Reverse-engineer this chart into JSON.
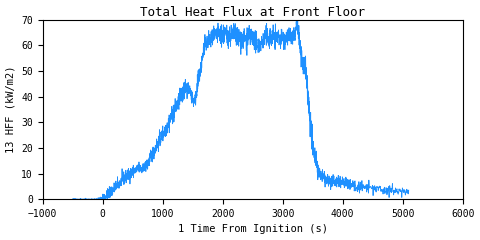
{
  "title": "Total Heat Flux at Front Floor",
  "xlabel": "1 Time From Ignition (s)",
  "ylabel": "13 HFF (kW/m2)",
  "xlim": [
    -1000,
    6000
  ],
  "ylim": [
    0,
    70
  ],
  "xticks": [
    -1000,
    0,
    1000,
    2000,
    3000,
    4000,
    5000,
    6000
  ],
  "yticks": [
    0,
    10,
    20,
    30,
    40,
    50,
    60,
    70
  ],
  "line_color": "#1e90ff",
  "linewidth": 0.6,
  "figsize": [
    4.8,
    2.4
  ],
  "dpi": 100
}
